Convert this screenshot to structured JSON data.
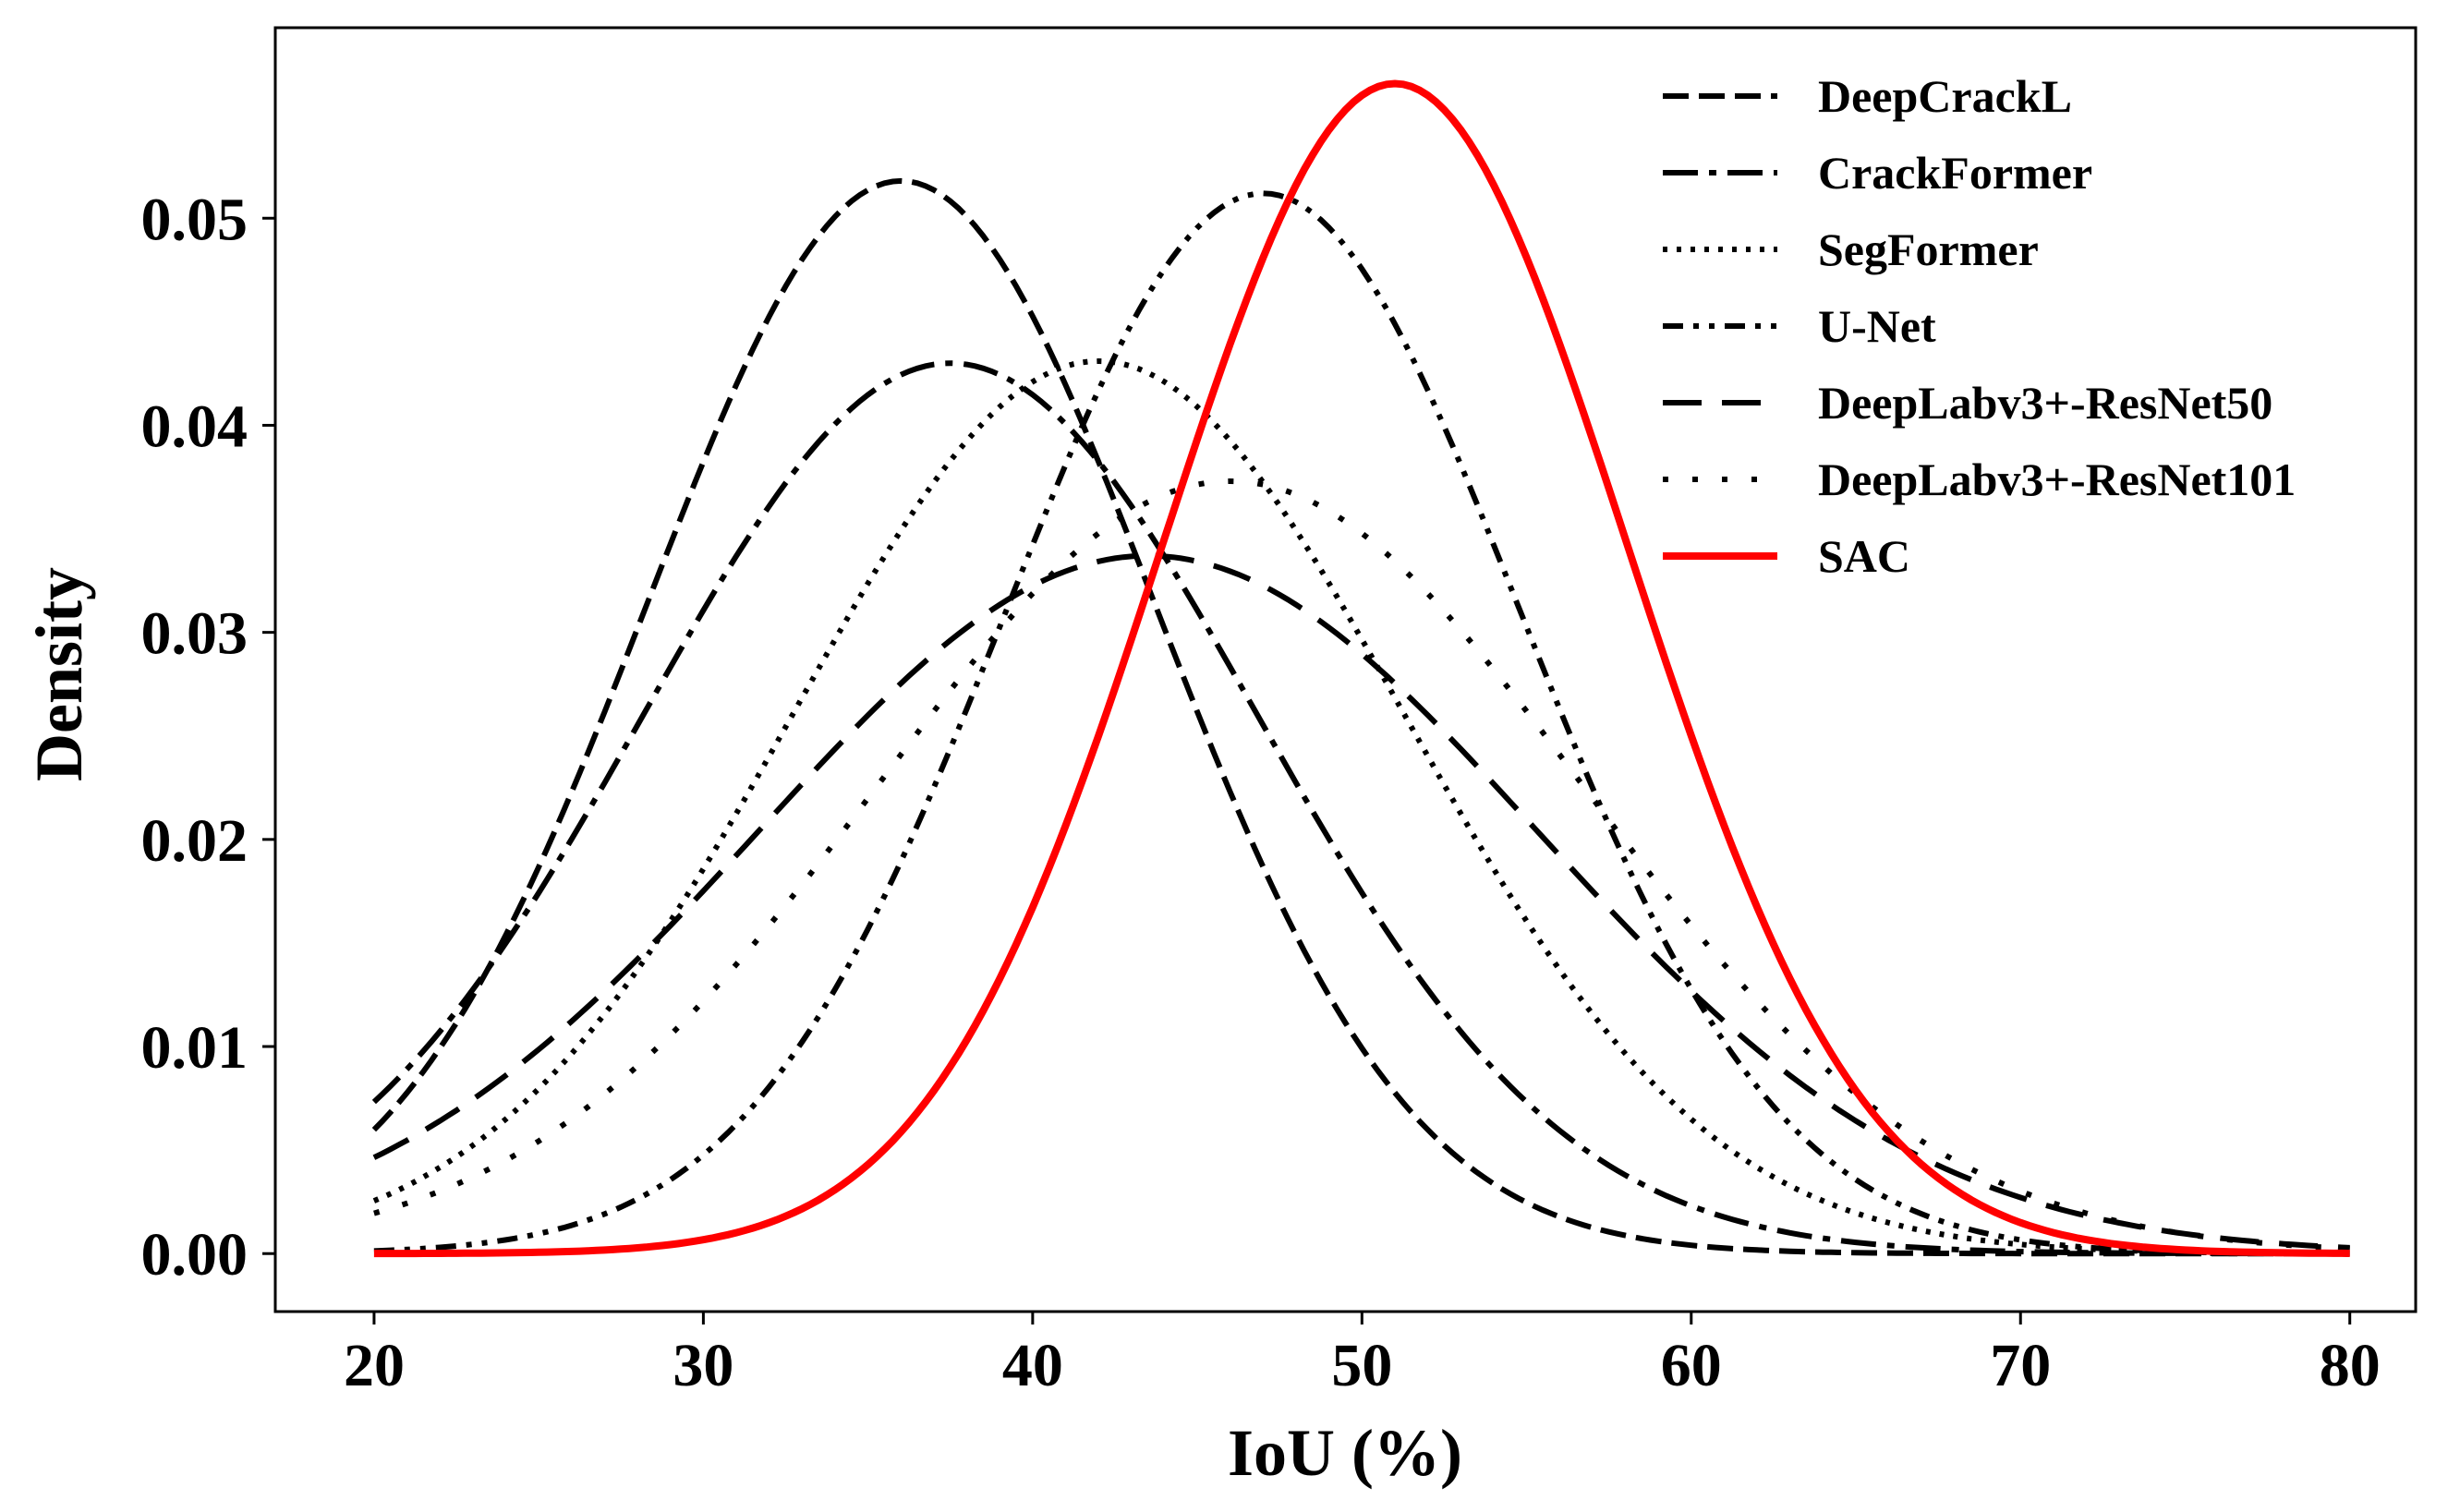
{
  "chart_data": {
    "type": "line",
    "title": "",
    "xlabel": "IoU (%)",
    "ylabel": "Density",
    "xlim": [
      17,
      82
    ],
    "ylim": [
      -0.0028,
      0.0592
    ],
    "xticks": [
      20,
      30,
      40,
      50,
      60,
      70,
      80
    ],
    "xtick_labels": [
      "20",
      "30",
      "40",
      "50",
      "60",
      "70",
      "80"
    ],
    "yticks": [
      0.0,
      0.01,
      0.02,
      0.03,
      0.04,
      0.05
    ],
    "ytick_labels": [
      "0.00",
      "0.01",
      "0.02",
      "0.03",
      "0.04",
      "0.05"
    ],
    "grid": false,
    "legend_position": "top-right",
    "x_range": [
      20,
      80
    ],
    "curve_shape": "normal density",
    "series": [
      {
        "name": "DeepCrackL",
        "mean": 36.0,
        "std": 7.7,
        "peak": 0.0518,
        "color": "#000000",
        "linestyle": "dashed"
      },
      {
        "name": "CrackFormer",
        "mean": 37.5,
        "std": 9.3,
        "peak": 0.043,
        "color": "#000000",
        "linestyle": "dashdot"
      },
      {
        "name": "SegFormer",
        "mean": 42.0,
        "std": 9.25,
        "peak": 0.0431,
        "color": "#000000",
        "linestyle": "dotted"
      },
      {
        "name": "U-Net",
        "mean": 47.0,
        "std": 7.8,
        "peak": 0.0512,
        "color": "#000000",
        "linestyle": "dashdotdot"
      },
      {
        "name": "DeepLabv3+-ResNet50",
        "mean": 43.5,
        "std": 11.8,
        "peak": 0.0337,
        "color": "#000000",
        "linestyle": "longdash"
      },
      {
        "name": "DeepLabv3+-ResNet101",
        "mean": 46.0,
        "std": 10.7,
        "peak": 0.0373,
        "color": "#000000",
        "linestyle": "loosedotted"
      },
      {
        "name": "SAC",
        "mean": 51.0,
        "std": 7.05,
        "peak": 0.0565,
        "color": "#ff0000",
        "linestyle": "solid"
      }
    ]
  }
}
